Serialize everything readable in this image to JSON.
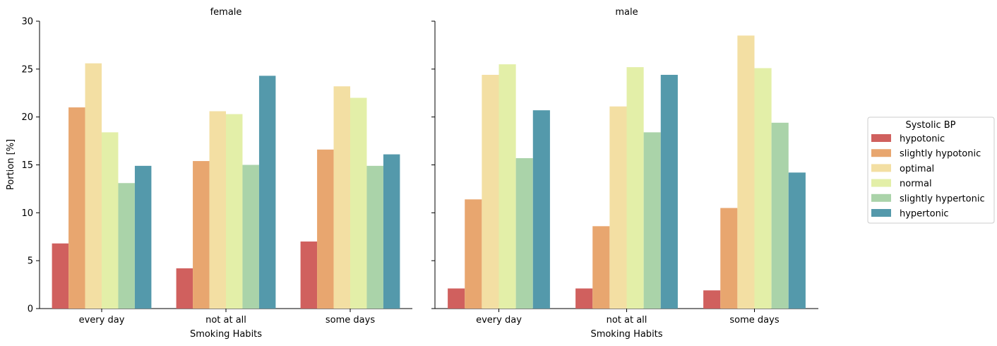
{
  "chart_data": {
    "type": "bar",
    "ylabel": "Portion [%]",
    "ylim": [
      0,
      30
    ],
    "yticks": [
      0,
      5,
      10,
      15,
      20,
      25,
      30
    ],
    "xlabel": "Smoking Habits",
    "categories": [
      "every day",
      "not at all",
      "some days"
    ],
    "legend": {
      "title": "Systolic BP",
      "placement": "right"
    },
    "hue_order": [
      "hypotonic",
      "slightly hypotonic",
      "optimal",
      "normal",
      "slightly hypertonic",
      "hypertonic"
    ],
    "colors": {
      "hypotonic": "#d0605e",
      "slightly hypotonic": "#e8a66f",
      "optimal": "#f3dfa3",
      "normal": "#e3efa8",
      "slightly hypertonic": "#aad3a9",
      "hypertonic": "#5499ab"
    },
    "panels": [
      {
        "title": "female",
        "series": [
          {
            "name": "hypotonic",
            "values": [
              6.8,
              4.2,
              7.0
            ]
          },
          {
            "name": "slightly hypotonic",
            "values": [
              21.0,
              15.4,
              16.6
            ]
          },
          {
            "name": "optimal",
            "values": [
              25.6,
              20.6,
              23.2
            ]
          },
          {
            "name": "normal",
            "values": [
              18.4,
              20.3,
              22.0
            ]
          },
          {
            "name": "slightly hypertonic",
            "values": [
              13.1,
              15.0,
              14.9
            ]
          },
          {
            "name": "hypertonic",
            "values": [
              14.9,
              24.3,
              16.1
            ]
          }
        ]
      },
      {
        "title": "male",
        "series": [
          {
            "name": "hypotonic",
            "values": [
              2.1,
              2.1,
              1.9
            ]
          },
          {
            "name": "slightly hypotonic",
            "values": [
              11.4,
              8.6,
              10.5
            ]
          },
          {
            "name": "optimal",
            "values": [
              24.4,
              21.1,
              28.5
            ]
          },
          {
            "name": "normal",
            "values": [
              25.5,
              25.2,
              25.1
            ]
          },
          {
            "name": "slightly hypertonic",
            "values": [
              15.7,
              18.4,
              19.4
            ]
          },
          {
            "name": "hypertonic",
            "values": [
              20.7,
              24.4,
              14.2
            ]
          }
        ]
      }
    ]
  }
}
